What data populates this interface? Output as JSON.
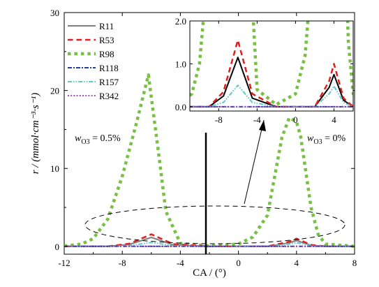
{
  "chart_data": {
    "type": "line",
    "xlabel": "CA / (°)",
    "ylabel": "r / (mmol·cm⁻³·s⁻¹)",
    "xlim": [
      -12,
      8
    ],
    "ylim": [
      -1,
      30
    ],
    "xticks": [
      -12,
      -8,
      -4,
      0,
      4,
      8
    ],
    "yticks": [
      0,
      10,
      20,
      30
    ],
    "grid": false,
    "legend_placement": "top-left",
    "series": [
      {
        "name": "R11",
        "color": "#808080",
        "style": "solid",
        "x": [
          -12,
          -9,
          -7.5,
          -6,
          -4.5,
          -2,
          0,
          2,
          3.5,
          4,
          5,
          6,
          8
        ],
        "y": [
          0,
          0,
          0.25,
          1.15,
          0.2,
          0,
          0,
          0,
          0.45,
          0.75,
          0.15,
          0,
          0
        ]
      },
      {
        "name": "R53",
        "color": "#e02020",
        "style": "dashed",
        "x": [
          -12,
          -9,
          -7.5,
          -6,
          -4.5,
          -2,
          0,
          2,
          3.5,
          4,
          5,
          6,
          8
        ],
        "y": [
          0,
          0,
          0.35,
          1.55,
          0.3,
          0,
          0,
          0,
          0.6,
          1.0,
          0.2,
          0,
          0
        ]
      },
      {
        "name": "R98",
        "color": "#77c043",
        "style": "dotted",
        "x": [
          -12,
          -10.8,
          -10,
          -9,
          -8,
          -7,
          -6.2,
          -5.5,
          -5,
          -4,
          -2,
          0,
          1,
          2,
          2.5,
          3,
          3.5,
          4,
          4.3,
          5,
          5.5,
          6,
          8
        ],
        "y": [
          0.05,
          0.3,
          1.0,
          3.5,
          9,
          16,
          22,
          12,
          4.5,
          0.4,
          0.05,
          0.3,
          1.2,
          4,
          9,
          14,
          16.5,
          16,
          14,
          5,
          1.5,
          0.3,
          0
        ]
      },
      {
        "name": "R118",
        "color": "#1f3f9f",
        "style": "dashdot",
        "x": [
          -12,
          8
        ],
        "y": [
          0,
          0
        ]
      },
      {
        "name": "R157",
        "color": "#60c8c8",
        "style": "dashdotdot",
        "x": [
          -12,
          -9,
          -7.5,
          -6,
          -4.5,
          -2,
          0,
          2,
          3.5,
          4,
          5,
          6,
          8
        ],
        "y": [
          0,
          0,
          0.1,
          0.5,
          0.1,
          0,
          0,
          0,
          0.3,
          0.48,
          0.1,
          0,
          0
        ]
      },
      {
        "name": "R342",
        "color": "#a050b0",
        "style": "dotted",
        "x": [
          -12,
          8
        ],
        "y": [
          0,
          0
        ]
      }
    ],
    "annotations": {
      "left_label": "w",
      "left_sub": "O3",
      "left_value": " = 0.5%",
      "right_label": "w",
      "right_sub": "O3",
      "right_value": " = 0%"
    },
    "inset": {
      "xlim": [
        -11,
        6
      ],
      "ylim": [
        -0.1,
        2.0
      ],
      "xticks": [
        -8,
        -4,
        0,
        4
      ],
      "yticks": [
        0.0,
        1.0,
        2.0
      ],
      "ytick_labels": [
        "0.0",
        "1.0",
        "2.0"
      ]
    }
  }
}
